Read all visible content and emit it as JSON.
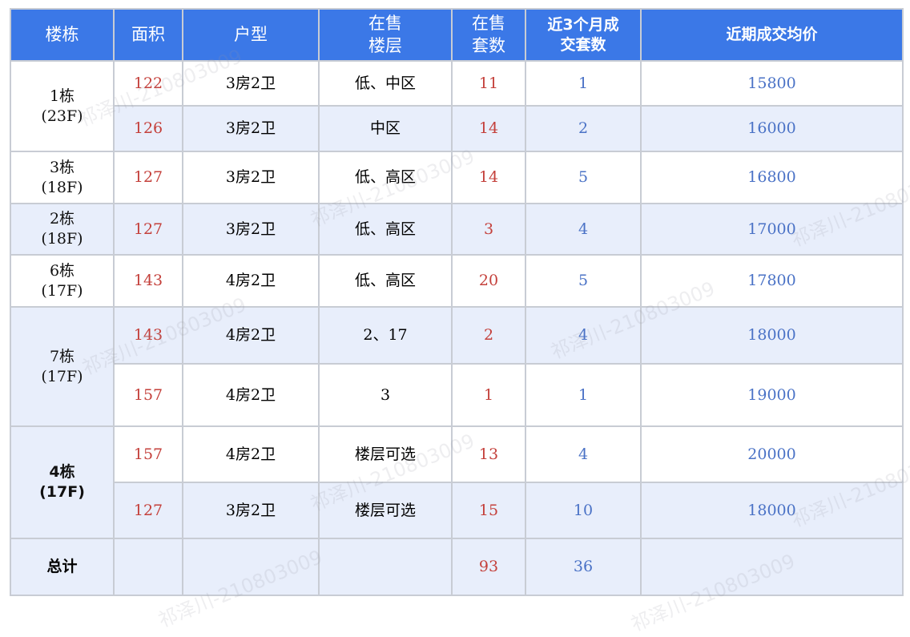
{
  "headers": [
    "楼栋",
    "面积",
    "户型",
    "在售\n楼层",
    "在售\n套数",
    "近3个月成\n交套数",
    "近期成交均价"
  ],
  "buildings": [
    {
      "name": "1栋",
      "floors": "(23F)",
      "bold": false,
      "rows": [
        {
          "area": "122",
          "type": "3房2卫",
          "floor": "低、中区",
          "sale": "11",
          "sold": "1",
          "price": "15800"
        },
        {
          "area": "126",
          "type": "3房2卫",
          "floor": "中区",
          "sale": "14",
          "sold": "2",
          "price": "16000"
        }
      ]
    },
    {
      "name": "3栋",
      "floors": "(18F)",
      "bold": false,
      "rows": [
        {
          "area": "127",
          "type": "3房2卫",
          "floor": "低、高区",
          "sale": "14",
          "sold": "5",
          "price": "16800"
        }
      ]
    },
    {
      "name": "2栋",
      "floors": "(18F)",
      "bold": false,
      "rows": [
        {
          "area": "127",
          "type": "3房2卫",
          "floor": "低、高区",
          "sale": "3",
          "sold": "4",
          "price": "17000"
        }
      ]
    },
    {
      "name": "6栋",
      "floors": "(17F)",
      "bold": false,
      "rows": [
        {
          "area": "143",
          "type": "4房2卫",
          "floor": "低、高区",
          "sale": "20",
          "sold": "5",
          "price": "17800"
        }
      ]
    },
    {
      "name": "7栋",
      "floors": "(17F)",
      "bold": false,
      "rows": [
        {
          "area": "143",
          "type": "4房2卫",
          "floor": "2、17",
          "sale": "2",
          "sold": "4",
          "price": "18000"
        },
        {
          "area": "157",
          "type": "4房2卫",
          "floor": "3",
          "sale": "1",
          "sold": "1",
          "price": "19000"
        }
      ]
    },
    {
      "name": "4栋",
      "floors": "(17F)",
      "bold": true,
      "rows": [
        {
          "area": "157",
          "type": "4房2卫",
          "floor": "楼层可选",
          "sale": "13",
          "sold": "4",
          "price": "20000"
        },
        {
          "area": "127",
          "type": "3房2卫",
          "floor": "楼层可选",
          "sale": "15",
          "sold": "10",
          "price": "18000"
        }
      ]
    }
  ],
  "total": {
    "label": "总计",
    "sale": "93",
    "sold": "36"
  },
  "watermark": "祁泽川-210803009",
  "colors": {
    "header": "#3b78e7",
    "stripe": "#e8eefb",
    "red": "#c4403b",
    "blue": "#4a72c6"
  }
}
